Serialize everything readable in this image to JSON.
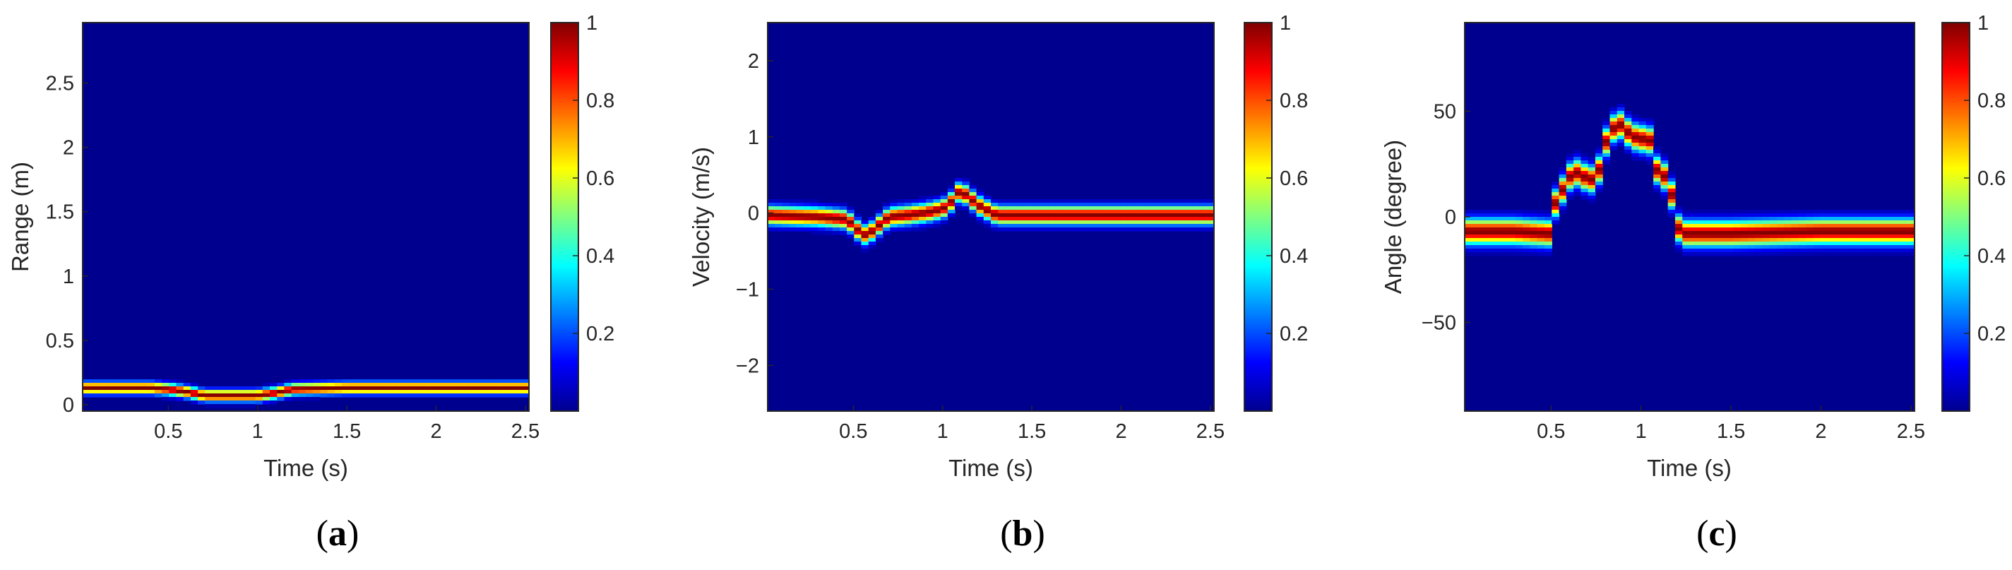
{
  "colormap": [
    "#00008f",
    "#0000ff",
    "#0080ff",
    "#00ffff",
    "#80ff80",
    "#ffff00",
    "#ff8000",
    "#ff0000",
    "#800000"
  ],
  "chart_data": [
    {
      "type": "heatmap",
      "caption": {
        "open": "(",
        "letter": "a",
        "close": ")"
      },
      "xlabel": "Time (s)",
      "ylabel": "Range (m)",
      "xlim": [
        0.02,
        2.52
      ],
      "ylim": [
        -0.05,
        2.97
      ],
      "xticks": [
        0.5,
        1,
        1.5,
        2,
        2.5
      ],
      "yticks": [
        0,
        0.5,
        1,
        1.5,
        2,
        2.5
      ],
      "colorbar": {
        "range": [
          0,
          1
        ],
        "ticks": [
          0.2,
          0.4,
          0.6,
          0.8,
          1
        ]
      },
      "ridge": {
        "x": [
          0.02,
          0.4,
          0.5,
          0.6,
          0.7,
          0.8,
          0.9,
          1.0,
          1.1,
          1.2,
          1.5,
          2.0,
          2.52
        ],
        "y": [
          0.13,
          0.13,
          0.12,
          0.1,
          0.07,
          0.07,
          0.07,
          0.07,
          0.09,
          0.12,
          0.13,
          0.13,
          0.13
        ]
      },
      "spread": 0.03
    },
    {
      "type": "heatmap",
      "caption": {
        "open": "(",
        "letter": "b",
        "close": ")"
      },
      "xlabel": "Time (s)",
      "ylabel": "Velocity (m/s)",
      "xlim": [
        0.02,
        2.52
      ],
      "ylim": [
        -2.6,
        2.5
      ],
      "xticks": [
        0.5,
        1,
        1.5,
        2,
        2.5
      ],
      "yticks": [
        -2,
        -1,
        0,
        1,
        2
      ],
      "colorbar": {
        "range": [
          0,
          1
        ],
        "ticks": [
          0.2,
          0.4,
          0.6,
          0.8,
          1
        ]
      },
      "ridge": {
        "x": [
          0.02,
          0.3,
          0.45,
          0.5,
          0.55,
          0.6,
          0.65,
          0.7,
          0.8,
          0.9,
          1.0,
          1.05,
          1.1,
          1.15,
          1.2,
          1.3,
          1.5,
          2.0,
          2.52
        ],
        "y": [
          -0.03,
          -0.05,
          -0.08,
          -0.15,
          -0.3,
          -0.25,
          -0.15,
          -0.05,
          -0.03,
          0.0,
          0.05,
          0.15,
          0.3,
          0.2,
          0.1,
          -0.03,
          -0.03,
          -0.03,
          -0.03
        ]
      },
      "spread": 0.08
    },
    {
      "type": "heatmap",
      "caption": {
        "open": "(",
        "letter": "c",
        "close": ")"
      },
      "xlabel": "Time (s)",
      "ylabel": "Angle (degree)",
      "xlim": [
        0.02,
        2.52
      ],
      "ylim": [
        -92,
        92
      ],
      "xticks": [
        0.5,
        1,
        1.5,
        2,
        2.5
      ],
      "yticks": [
        -50,
        0,
        50
      ],
      "colorbar": {
        "range": [
          0,
          1
        ],
        "ticks": [
          0.2,
          0.4,
          0.6,
          0.8,
          1
        ]
      },
      "ridge": {
        "x": [
          0.02,
          0.3,
          0.5,
          0.53,
          0.58,
          0.62,
          0.68,
          0.75,
          0.82,
          0.88,
          0.95,
          1.0,
          1.05,
          1.1,
          1.15,
          1.2,
          1.25,
          1.5,
          2.0,
          2.52
        ],
        "y": [
          -7,
          -7,
          -8,
          10,
          14,
          22,
          19,
          17,
          40,
          44,
          38,
          37,
          36,
          18,
          20,
          -5,
          -8,
          -8,
          -7,
          -7
        ]
      },
      "spread": 4
    }
  ]
}
